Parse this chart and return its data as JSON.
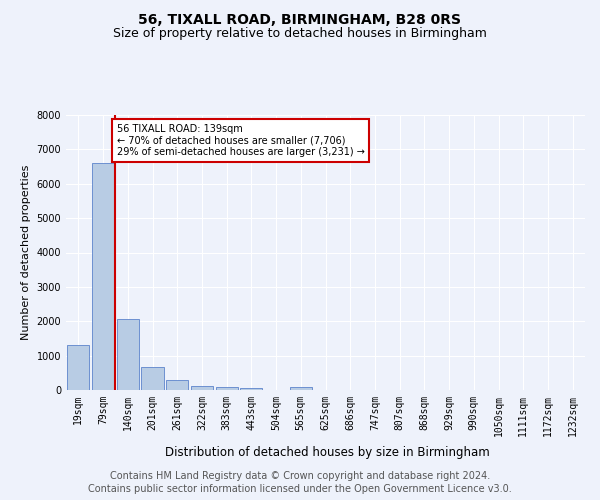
{
  "title": "56, TIXALL ROAD, BIRMINGHAM, B28 0RS",
  "subtitle": "Size of property relative to detached houses in Birmingham",
  "xlabel": "Distribution of detached houses by size in Birmingham",
  "ylabel": "Number of detached properties",
  "footer_line1": "Contains HM Land Registry data © Crown copyright and database right 2024.",
  "footer_line2": "Contains public sector information licensed under the Open Government Licence v3.0.",
  "bar_labels": [
    "19sqm",
    "79sqm",
    "140sqm",
    "201sqm",
    "261sqm",
    "322sqm",
    "383sqm",
    "443sqm",
    "504sqm",
    "565sqm",
    "625sqm",
    "686sqm",
    "747sqm",
    "807sqm",
    "868sqm",
    "929sqm",
    "990sqm",
    "1050sqm",
    "1111sqm",
    "1172sqm",
    "1232sqm"
  ],
  "bar_values": [
    1300,
    6600,
    2060,
    680,
    290,
    130,
    80,
    60,
    0,
    100,
    0,
    0,
    0,
    0,
    0,
    0,
    0,
    0,
    0,
    0,
    0
  ],
  "bar_color": "#b8cce4",
  "bar_edge_color": "#4472c4",
  "highlight_line_color": "#cc0000",
  "highlight_bar_idx": 2,
  "annotation_line1": "56 TIXALL ROAD: 139sqm",
  "annotation_line2": "← 70% of detached houses are smaller (7,706)",
  "annotation_line3": "29% of semi-detached houses are larger (3,231) →",
  "annotation_box_color": "#cc0000",
  "ylim": [
    0,
    8000
  ],
  "yticks": [
    0,
    1000,
    2000,
    3000,
    4000,
    5000,
    6000,
    7000,
    8000
  ],
  "bg_color": "#eef2fb",
  "plot_bg_color": "#eef2fb",
  "grid_color": "#ffffff",
  "title_fontsize": 10,
  "subtitle_fontsize": 9,
  "axis_label_fontsize": 8.5,
  "tick_fontsize": 7,
  "footer_fontsize": 7,
  "ylabel_fontsize": 8
}
